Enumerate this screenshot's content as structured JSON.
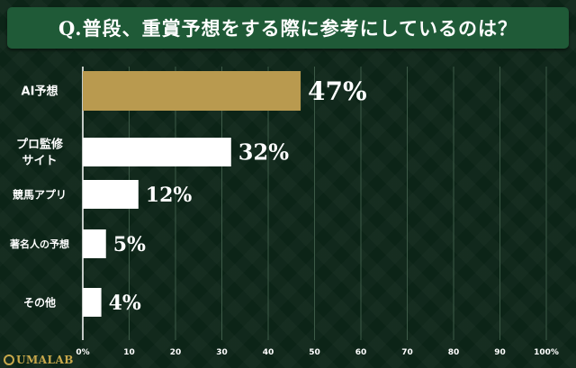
{
  "title": "Q.普段、重賞予想をする際に参考にしているのは？",
  "brand": "UMALAB",
  "chart_data": {
    "type": "bar",
    "orientation": "horizontal",
    "categories": [
      [
        "AI予想"
      ],
      [
        "プロ監修",
        "サイト"
      ],
      [
        "競馬アプリ"
      ],
      [
        "著名人の予想"
      ],
      [
        "その他"
      ]
    ],
    "values": [
      47,
      32,
      12,
      5,
      4
    ],
    "value_labels": [
      "47%",
      "32%",
      "12%",
      "5%",
      "4%"
    ],
    "xlim": [
      0,
      100
    ],
    "ticks": [
      "0%",
      "10",
      "20",
      "30",
      "40",
      "50",
      "60",
      "70",
      "80",
      "90",
      "100%"
    ],
    "grid": true,
    "colors": {
      "highlight": "#b99a4f",
      "default": "#ffffff",
      "grid": "#3c5a47"
    }
  }
}
